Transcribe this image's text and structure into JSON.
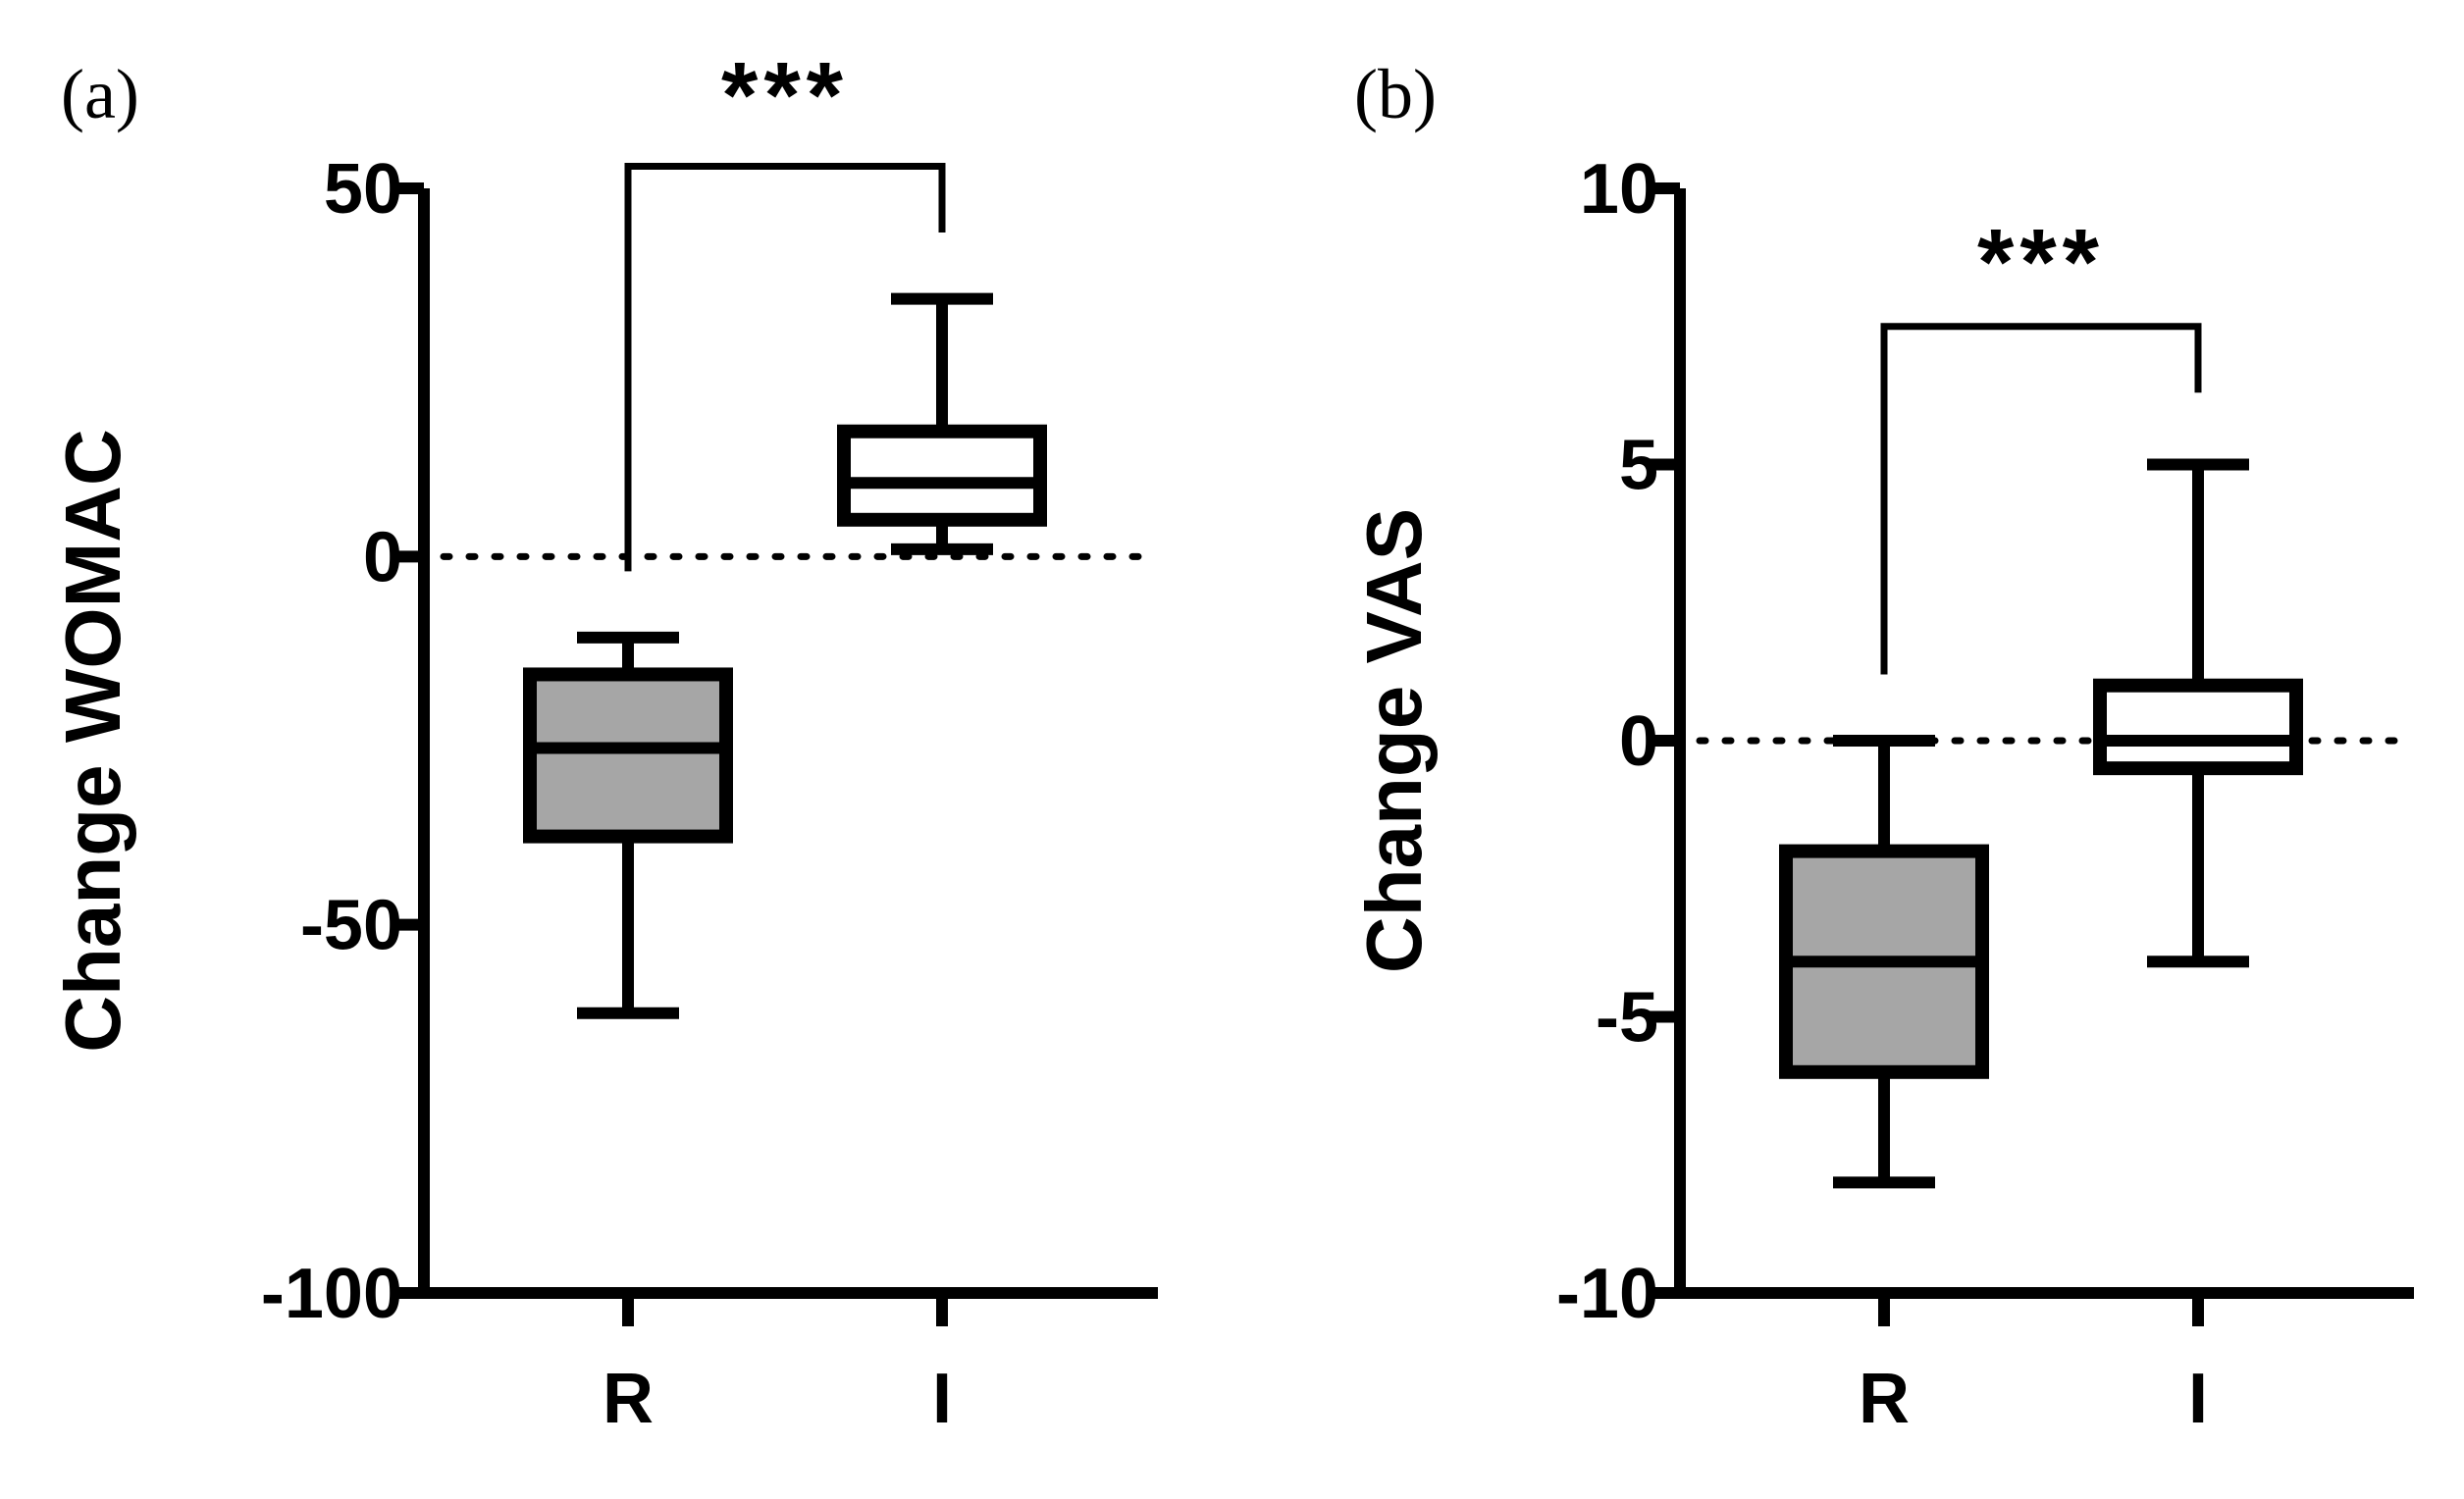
{
  "chart_data": [
    {
      "type": "box",
      "panel_label": "(a)",
      "ylabel": "Change WOMAC",
      "ylim": [
        -100,
        50
      ],
      "yticks": [
        50,
        0,
        -50,
        -100
      ],
      "ytick_labels": [
        "50",
        "0",
        "-50",
        "-100"
      ],
      "categories": [
        "R",
        "I"
      ],
      "reference_line": 0,
      "boxes": [
        {
          "category": "R",
          "min": -62,
          "q1": -38,
          "median": -26,
          "q3": -16,
          "max": -11,
          "color": "#a6a6a6"
        },
        {
          "category": "I",
          "min": 1,
          "q1": 5,
          "median": 10,
          "q3": 17,
          "max": 35,
          "color": "#ffffff"
        }
      ],
      "significance": {
        "label": "***",
        "from": "R",
        "to": "I",
        "bracket_y": 53,
        "left_y": -2,
        "right_y": 44
      }
    },
    {
      "type": "box",
      "panel_label": "(b)",
      "ylabel": "Change VAS",
      "ylim": [
        -10,
        10
      ],
      "yticks": [
        10,
        5,
        0,
        -5,
        -10
      ],
      "ytick_labels": [
        "10",
        "5",
        "0",
        "-5",
        "-10"
      ],
      "categories": [
        "R",
        "I"
      ],
      "reference_line": 0,
      "boxes": [
        {
          "category": "R",
          "min": -8,
          "q1": -6,
          "median": -4,
          "q3": -2,
          "max": 0,
          "color": "#a6a6a6"
        },
        {
          "category": "I",
          "min": -4,
          "q1": -0.5,
          "median": 0,
          "q3": 1,
          "max": 5,
          "color": "#ffffff"
        }
      ],
      "significance": {
        "label": "***",
        "from": "R",
        "to": "I",
        "bracket_y": 7.5,
        "left_y": 1.2,
        "right_y": 6.3
      }
    }
  ]
}
